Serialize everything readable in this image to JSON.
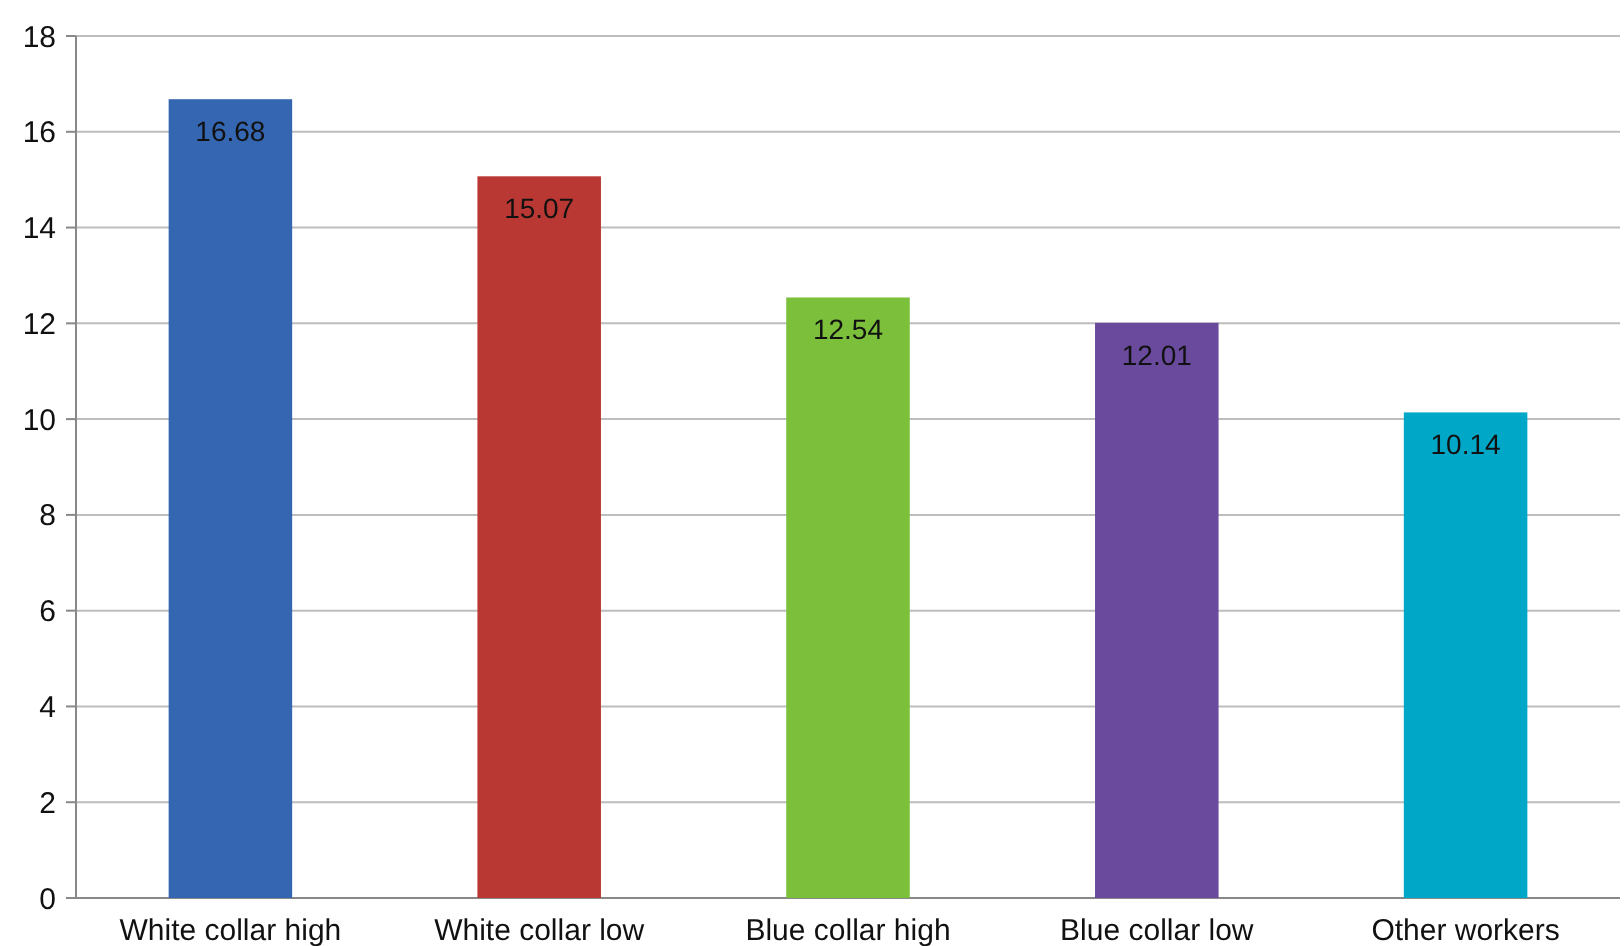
{
  "chart_data": {
    "type": "bar",
    "categories": [
      "White collar high",
      "White collar low",
      "Blue collar high",
      "Blue collar low",
      "Other workers"
    ],
    "values": [
      16.68,
      15.07,
      12.54,
      12.01,
      10.14
    ],
    "colors": [
      "#3566b1",
      "#b93833",
      "#7cbf3b",
      "#6a4a9d",
      "#00a7c7"
    ],
    "ylim": [
      0,
      18
    ],
    "yticks": [
      0,
      2,
      4,
      6,
      8,
      10,
      12,
      14,
      16,
      18
    ],
    "grid": "y",
    "data_labels": true
  }
}
